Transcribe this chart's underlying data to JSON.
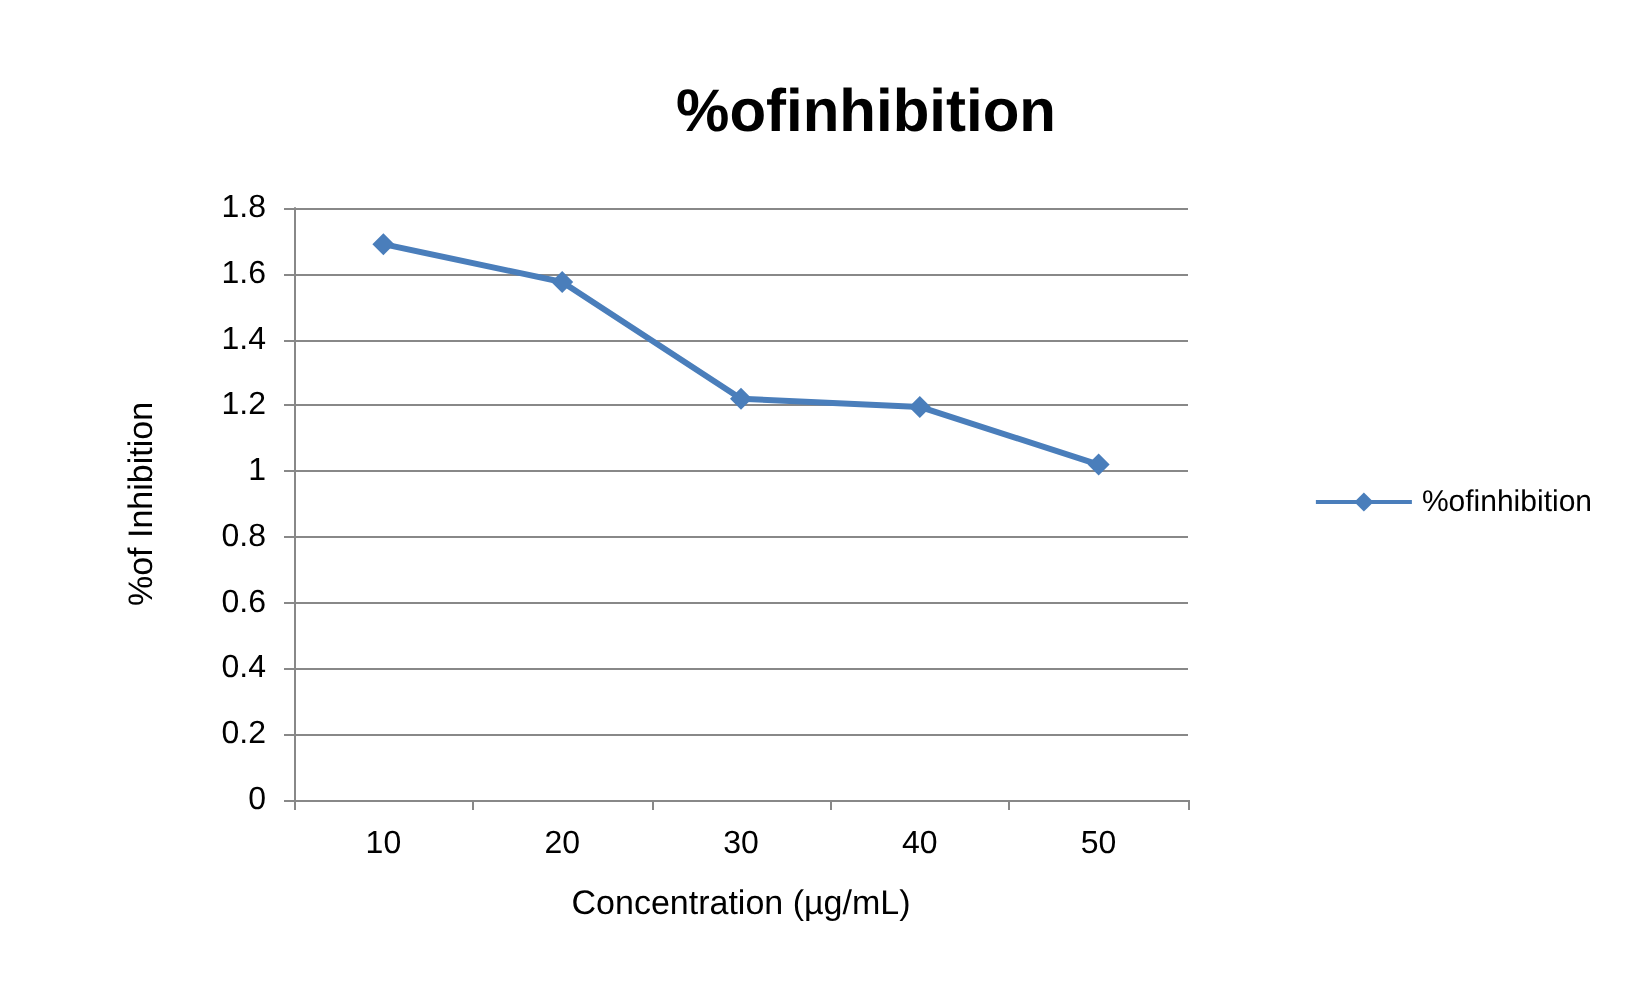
{
  "chart_data": {
    "type": "line",
    "title": "%ofinhibition",
    "xlabel": "Concentration (µg/mL)",
    "ylabel": "%of Inhibition",
    "categories": [
      "10",
      "20",
      "30",
      "40",
      "50"
    ],
    "series": [
      {
        "name": "%ofinhibition",
        "color": "#4a7ebb",
        "values": [
          1.69,
          1.575,
          1.22,
          1.195,
          1.02
        ]
      }
    ],
    "ylim": [
      0,
      1.8
    ],
    "yticks": [
      0,
      0.2,
      0.4,
      0.6,
      0.8,
      1,
      1.2,
      1.4,
      1.6,
      1.8
    ],
    "grid": "y",
    "legend": "right",
    "marker": "diamond",
    "line_style": "solid"
  }
}
